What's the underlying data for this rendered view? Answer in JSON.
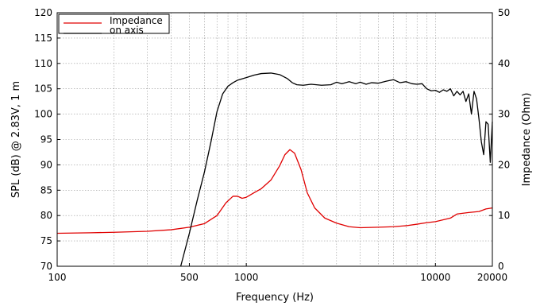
{
  "chart_data": {
    "type": "line",
    "xlabel": "Frequency (Hz)",
    "ylabel_left": "SPL (dB) @ 2.83V, 1 m",
    "ylabel_right": "Impedance (Ohm)",
    "x_scale": "log",
    "xlim": [
      100,
      20000
    ],
    "ylim_left": [
      70,
      120
    ],
    "ylim_right": [
      0,
      50
    ],
    "grid": true,
    "legend_position": "top-left",
    "x_tick_labels": [
      {
        "value": 100,
        "label": "100"
      },
      {
        "value": 500,
        "label": "500"
      },
      {
        "value": 1000,
        "label": "1000"
      },
      {
        "value": 10000,
        "label": "10000"
      },
      {
        "value": 20000,
        "label": "20000"
      }
    ],
    "y_left_ticks": [
      70,
      75,
      80,
      85,
      90,
      95,
      100,
      105,
      110,
      115,
      120
    ],
    "y_right_ticks": [
      0,
      10,
      20,
      30,
      40,
      50
    ],
    "series": [
      {
        "name": "Impedance",
        "axis": "right",
        "color": "#e00000",
        "points": [
          [
            100,
            6.5
          ],
          [
            150,
            6.6
          ],
          [
            200,
            6.7
          ],
          [
            300,
            6.9
          ],
          [
            400,
            7.2
          ],
          [
            500,
            7.7
          ],
          [
            600,
            8.4
          ],
          [
            700,
            10.0
          ],
          [
            780,
            12.5
          ],
          [
            850,
            13.8
          ],
          [
            900,
            13.8
          ],
          [
            950,
            13.4
          ],
          [
            1000,
            13.6
          ],
          [
            1100,
            14.5
          ],
          [
            1200,
            15.3
          ],
          [
            1350,
            17.0
          ],
          [
            1500,
            19.8
          ],
          [
            1600,
            22.0
          ],
          [
            1700,
            23.0
          ],
          [
            1800,
            22.3
          ],
          [
            1950,
            19.0
          ],
          [
            2100,
            14.5
          ],
          [
            2300,
            11.5
          ],
          [
            2600,
            9.5
          ],
          [
            3000,
            8.5
          ],
          [
            3500,
            7.8
          ],
          [
            4000,
            7.6
          ],
          [
            5000,
            7.7
          ],
          [
            6000,
            7.8
          ],
          [
            7000,
            8.0
          ],
          [
            8000,
            8.3
          ],
          [
            9000,
            8.6
          ],
          [
            10000,
            8.8
          ],
          [
            12000,
            9.5
          ],
          [
            13000,
            10.3
          ],
          [
            15000,
            10.6
          ],
          [
            17000,
            10.8
          ],
          [
            18500,
            11.3
          ],
          [
            20000,
            11.5
          ]
        ]
      },
      {
        "name": "on axis",
        "axis": "left",
        "color": "#000000",
        "points": [
          [
            450,
            70.0
          ],
          [
            500,
            76.5
          ],
          [
            550,
            83.0
          ],
          [
            600,
            88.5
          ],
          [
            650,
            94.5
          ],
          [
            700,
            100.5
          ],
          [
            750,
            104.0
          ],
          [
            800,
            105.5
          ],
          [
            850,
            106.2
          ],
          [
            900,
            106.7
          ],
          [
            1000,
            107.2
          ],
          [
            1100,
            107.7
          ],
          [
            1200,
            108.0
          ],
          [
            1350,
            108.1
          ],
          [
            1500,
            107.8
          ],
          [
            1650,
            107.0
          ],
          [
            1750,
            106.2
          ],
          [
            1850,
            105.8
          ],
          [
            2000,
            105.7
          ],
          [
            2200,
            105.9
          ],
          [
            2500,
            105.7
          ],
          [
            2800,
            105.8
          ],
          [
            3000,
            106.3
          ],
          [
            3200,
            106.0
          ],
          [
            3500,
            106.4
          ],
          [
            3800,
            106.0
          ],
          [
            4000,
            106.3
          ],
          [
            4300,
            105.9
          ],
          [
            4600,
            106.2
          ],
          [
            5000,
            106.1
          ],
          [
            5500,
            106.5
          ],
          [
            6000,
            106.8
          ],
          [
            6500,
            106.2
          ],
          [
            7000,
            106.4
          ],
          [
            7500,
            106.0
          ],
          [
            8000,
            105.9
          ],
          [
            8500,
            106.0
          ],
          [
            9000,
            105.0
          ],
          [
            9500,
            104.6
          ],
          [
            10000,
            104.7
          ],
          [
            10500,
            104.3
          ],
          [
            11000,
            104.8
          ],
          [
            11500,
            104.5
          ],
          [
            12000,
            105.0
          ],
          [
            12500,
            103.6
          ],
          [
            13000,
            104.5
          ],
          [
            13500,
            103.8
          ],
          [
            14000,
            104.5
          ],
          [
            14500,
            102.5
          ],
          [
            15000,
            104.0
          ],
          [
            15500,
            100.0
          ],
          [
            16000,
            104.5
          ],
          [
            16500,
            103.0
          ],
          [
            17000,
            99.0
          ],
          [
            17500,
            94.5
          ],
          [
            18000,
            92.0
          ],
          [
            18500,
            98.5
          ],
          [
            19000,
            98.0
          ],
          [
            19500,
            90.5
          ],
          [
            20000,
            98.5
          ]
        ]
      }
    ]
  }
}
